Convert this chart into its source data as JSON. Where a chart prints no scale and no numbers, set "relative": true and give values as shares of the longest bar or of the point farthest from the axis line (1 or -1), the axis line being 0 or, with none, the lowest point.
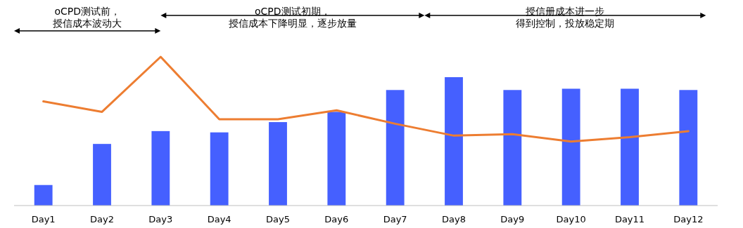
{
  "chart_data": {
    "type": "bar",
    "relative": true,
    "categories": [
      "Day1",
      "Day2",
      "Day3",
      "Day4",
      "Day5",
      "Day6",
      "Day7",
      "Day8",
      "Day9",
      "Day10",
      "Day11",
      "Day12"
    ],
    "series": [
      {
        "color": "#4560ff",
        "values": [
          0.16,
          0.48,
          0.58,
          0.57,
          0.65,
          0.73,
          0.9,
          1,
          0.9,
          0.91,
          0.91,
          0.9
        ]
      },
      {
        "type": "line",
        "axis": "y2",
        "color": "#ed7d31",
        "values": [
          0.7,
          0.63,
          1,
          0.58,
          0.58,
          0.64,
          0.55,
          0.47,
          0.48,
          0.43,
          0.46,
          0.5
        ]
      }
    ],
    "annotations": [
      "oCPD测试前，",
      "授信成本波动大",
      "oCPD测试初期，",
      "授信成本下降明显，逐步放量",
      "授信册成本进一步",
      "得到控制，投放稳定期"
    ],
    "grid": false
  }
}
